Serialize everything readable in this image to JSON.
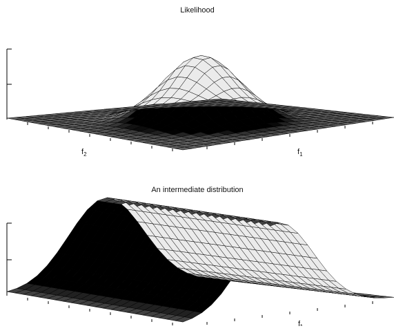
{
  "chart_data": [
    {
      "type": "surface",
      "title": "Likelihood",
      "shape": "2d-gaussian-bump",
      "xlabel_main": "f",
      "xlabel_sub": "1",
      "ylabel_main": "f",
      "ylabel_sub": "2",
      "zlabel": "",
      "grid": false,
      "colormap": "gray"
    },
    {
      "type": "surface",
      "title": "An intermediate distribution",
      "shape": "gaussian-ridge",
      "xlabel_main": "f",
      "xlabel_sub": "*",
      "ylabel_main": "",
      "ylabel_sub": "",
      "zlabel": "",
      "grid": false,
      "colormap": "gray"
    }
  ]
}
